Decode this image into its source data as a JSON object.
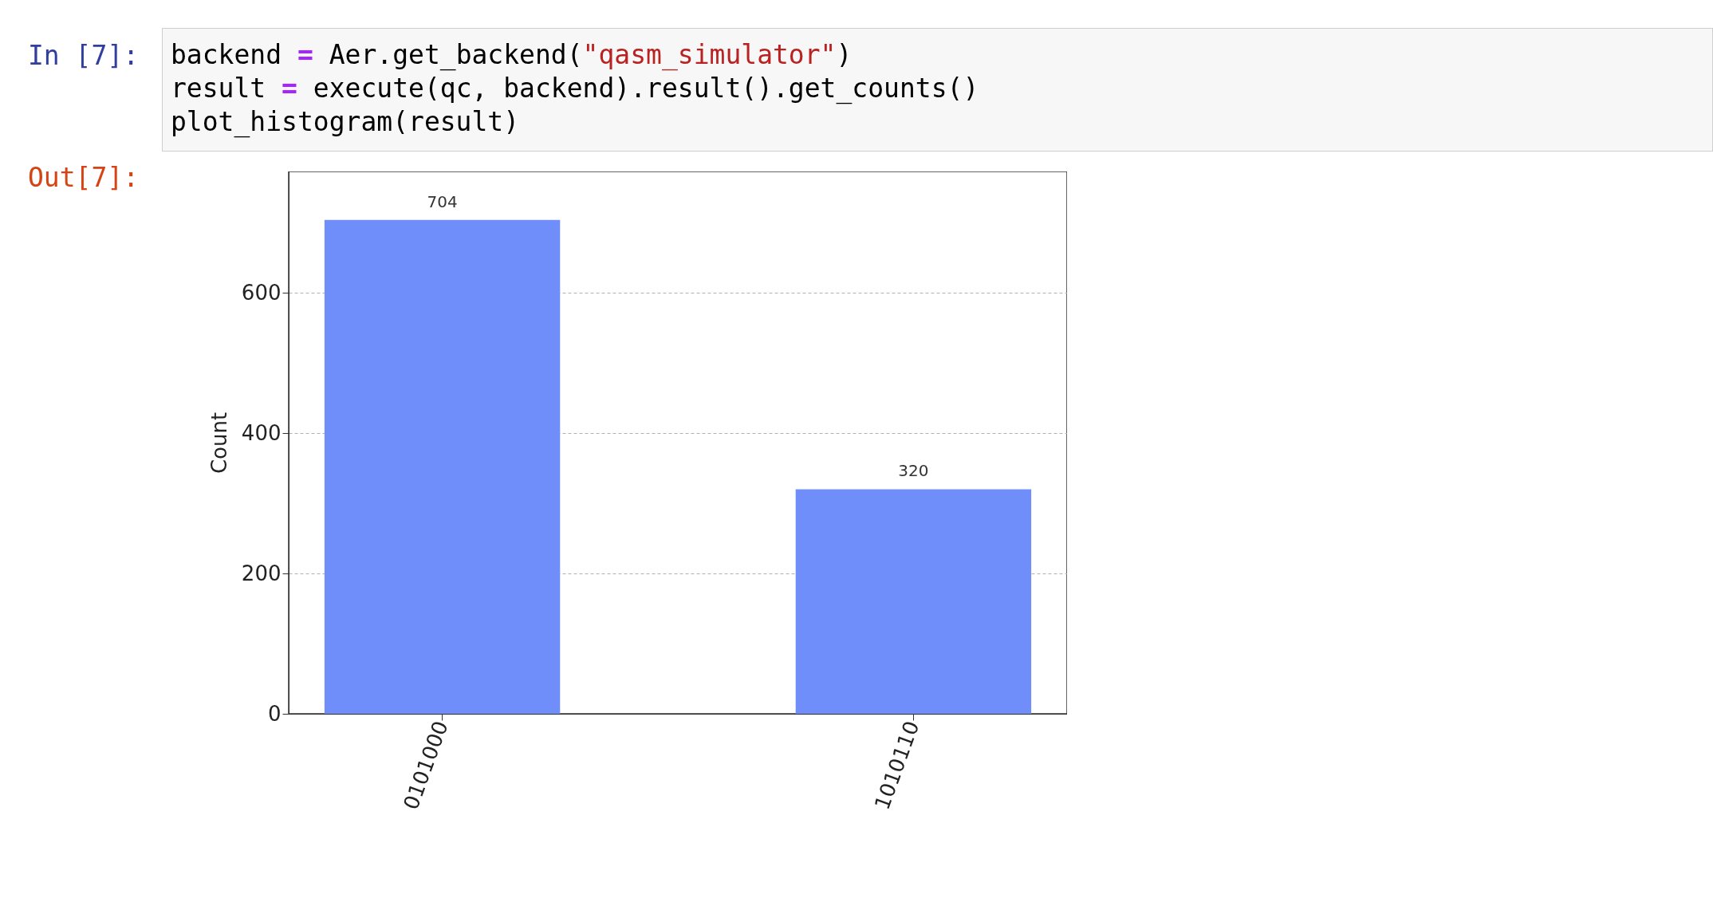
{
  "chart_data": {
    "type": "bar",
    "annotations": [
      "In [7]:",
      "backend = Aer.get_backend(\"qasm_simulator\")",
      "result = execute(qc, backend).result().get_counts()",
      "plot_histogram(result)",
      "Out[7]:"
    ],
    "categories": [
      "0101000",
      "1010110"
    ],
    "values": [
      704,
      320
    ],
    "color": "#6f8ef9",
    "ylabel": "Count",
    "ylim": [
      0,
      773
    ],
    "yticks": [
      0,
      200,
      400,
      600
    ],
    "grid": "y",
    "data_labels": true
  }
}
